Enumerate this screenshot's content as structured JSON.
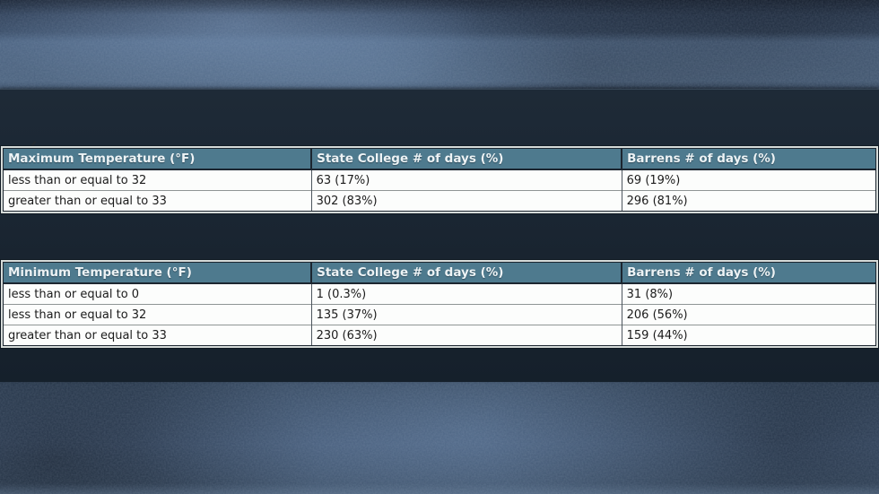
{
  "colors": {
    "header-bg": "#4e7a8e",
    "header-text": "#edf3f5",
    "row-bg": "#fcfdfc",
    "row-text": "#1b1b1b",
    "border-dark": "#1c2630",
    "border-light": "#d6dbd9",
    "divider-v": "#4d565e",
    "divider-h": "#8f9595",
    "band-top": "#1e2a37",
    "band-bottom": "#15202b",
    "page-bg": "#33475f"
  },
  "chart_data": [
    {
      "type": "table",
      "title": "Maximum Temperature table",
      "columns": [
        "Maximum Temperature (°F)",
        "State College # of days (%)",
        "Barrens # of days (%)"
      ],
      "rows": [
        [
          "less than or equal to 32",
          "63 (17%)",
          "69 (19%)"
        ],
        [
          "greater than or equal to 33",
          "302 (83%)",
          "296 (81%)"
        ]
      ]
    },
    {
      "type": "table",
      "title": "Minimum Temperature table",
      "columns": [
        "Minimum Temperature (°F)",
        "State College # of days (%)",
        "Barrens # of days (%)"
      ],
      "rows": [
        [
          "less than or equal to 0",
          "1 (0.3%)",
          "31 (8%)"
        ],
        [
          "less than or equal to 32",
          "135 (37%)",
          "206 (56%)"
        ],
        [
          "greater than or equal to 33",
          "230 (63%)",
          "159 (44%)"
        ]
      ]
    }
  ]
}
